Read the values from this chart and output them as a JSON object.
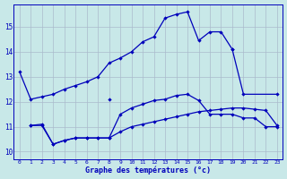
{
  "background_color": "#c8e8e8",
  "grid_color": "#aabbcc",
  "line_color": "#0000bb",
  "xlabel": "Graphe des températures (°c)",
  "xlabel_bold": true,
  "yticks": [
    10,
    11,
    12,
    13,
    14,
    15
  ],
  "ylim_min": 9.7,
  "ylim_max": 15.9,
  "xlim_min": -0.5,
  "xlim_max": 23.5,
  "curve_top": {
    "x": [
      0,
      1,
      2,
      3,
      4,
      5,
      6,
      7,
      8,
      9,
      10,
      11,
      12,
      13,
      14,
      15,
      16,
      17,
      18,
      19
    ],
    "y": [
      13.2,
      12.1,
      12.2,
      12.3,
      12.5,
      12.65,
      12.8,
      13.0,
      13.55,
      13.75,
      14.0,
      14.4,
      14.6,
      15.35,
      15.5,
      15.6,
      14.45,
      14.8,
      14.8,
      14.1
    ]
  },
  "curve_top_right": {
    "x": [
      19,
      20,
      23
    ],
    "y": [
      14.1,
      12.3,
      12.3
    ]
  },
  "isolated_point": {
    "x": [
      8
    ],
    "y": [
      12.1
    ]
  },
  "curve_mid": {
    "x": [
      1,
      2,
      3,
      4,
      5,
      6,
      7,
      8,
      9,
      10,
      11,
      12,
      13,
      14,
      15,
      16,
      17,
      18,
      19,
      20,
      21,
      22,
      23
    ],
    "y": [
      11.05,
      11.1,
      10.3,
      10.45,
      10.55,
      10.55,
      10.55,
      10.55,
      11.5,
      11.75,
      11.9,
      12.05,
      12.1,
      12.25,
      12.3,
      12.05,
      11.5,
      11.5,
      11.5,
      11.35,
      11.35,
      11.0,
      11.0
    ]
  },
  "curve_low": {
    "x": [
      1,
      2,
      3,
      4,
      5,
      6,
      7,
      8,
      9,
      10,
      11,
      12,
      13,
      14,
      15,
      16,
      17,
      18,
      19,
      20,
      21,
      22,
      23
    ],
    "y": [
      11.05,
      11.05,
      10.3,
      10.45,
      10.55,
      10.55,
      10.55,
      10.55,
      10.8,
      11.0,
      11.1,
      11.2,
      11.3,
      11.4,
      11.5,
      11.6,
      11.65,
      11.7,
      11.75,
      11.75,
      11.7,
      11.65,
      11.05
    ]
  }
}
